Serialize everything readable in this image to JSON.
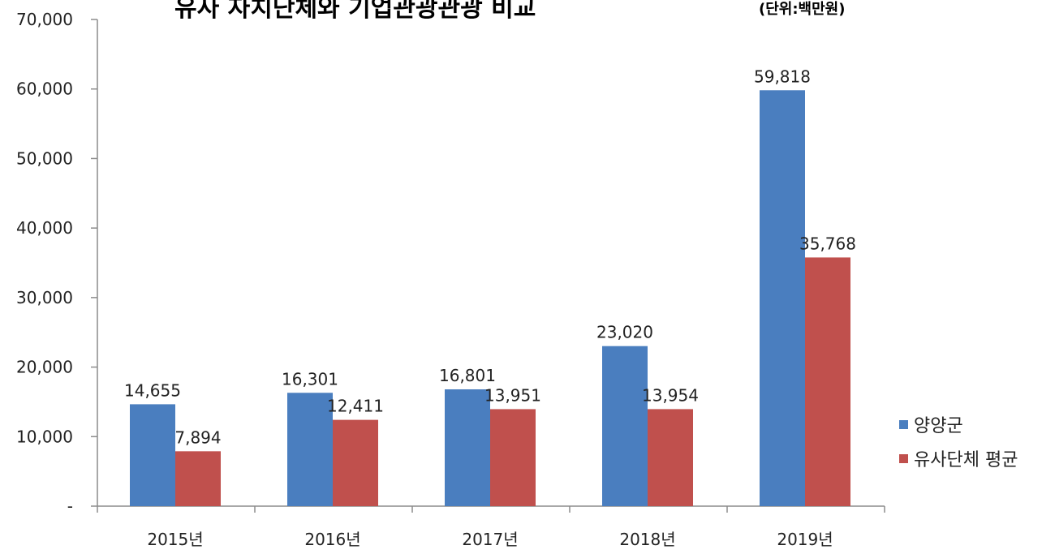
{
  "chart_data": {
    "type": "bar",
    "title": "유사 자치단체와 기업관광관광 비교",
    "subtitle": "(단위:백만원)",
    "categories": [
      "2015년",
      "2016년",
      "2017년",
      "2018년",
      "2019년"
    ],
    "series": [
      {
        "name": "양양군",
        "color": "#4a7ebf",
        "values": [
          14655,
          16301,
          16801,
          23020,
          59818
        ],
        "labels": [
          "14,655",
          "16,301",
          "16,801",
          "23,020",
          "59,818"
        ]
      },
      {
        "name": "유사단체 평균",
        "color": "#c0504d",
        "values": [
          7894,
          12411,
          13951,
          13954,
          35768
        ],
        "labels": [
          "7,894",
          "12,411",
          "13,951",
          "13,954",
          "35,768"
        ]
      }
    ],
    "ylim": [
      0,
      70000
    ],
    "yticks": [
      0,
      10000,
      20000,
      30000,
      40000,
      50000,
      60000,
      70000
    ],
    "ytick_labels": [
      "-",
      "10,000",
      "20,000",
      "30,000",
      "40,000",
      "50,000",
      "60,000",
      "70,000"
    ],
    "xlabel": "",
    "ylabel": "",
    "grid": false,
    "legend_position": "right"
  }
}
